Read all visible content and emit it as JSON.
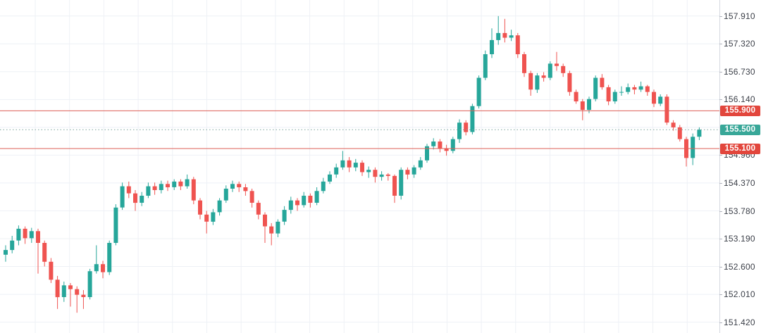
{
  "window": {
    "title": "candlestick-price-chart"
  },
  "chart": {
    "background": "#ffffff",
    "grid_color": "#eef1f6",
    "axis": {
      "border_color": "#d6d9e0",
      "text_color": "#3a3e47",
      "labels": [
        "157.910",
        "157.320",
        "156.730",
        "156.140",
        "154.960",
        "154.370",
        "153.780",
        "153.190",
        "152.600",
        "152.010",
        "151.420"
      ],
      "badges": [
        {
          "label": "155.900",
          "price": 155.9,
          "kind": "level-price",
          "color": "#e2463c"
        },
        {
          "label": "155.500",
          "price": 155.5,
          "kind": "current-price",
          "color": "#38a798"
        },
        {
          "label": "155.100",
          "price": 155.1,
          "kind": "level-price",
          "color": "#e2463c"
        }
      ]
    }
  },
  "chart_data": {
    "type": "candlestick",
    "title": "",
    "xlabel": "",
    "ylabel": "",
    "ylim": [
      151.19,
      158.25
    ],
    "grid": true,
    "legend": "none",
    "price_step": 0.59,
    "grid_prices": [
      157.91,
      157.32,
      156.73,
      156.14,
      155.55,
      154.96,
      154.37,
      153.78,
      153.19,
      152.6,
      152.01,
      151.42
    ],
    "levels": [
      {
        "label": "155.900",
        "price": 155.9,
        "style": "solid",
        "color": "#dd5f57"
      },
      {
        "label": "155.500",
        "price": 155.5,
        "style": "dotted",
        "color": "#7da49e"
      },
      {
        "label": "155.100",
        "price": 155.1,
        "style": "solid",
        "color": "#dd5f57"
      }
    ],
    "colors": {
      "up": "#26a69a",
      "down": "#ef5350"
    },
    "layout": {
      "x_start": 8,
      "x_step": 9.2,
      "body_width": 6,
      "plot_right": 1022,
      "v_grid_step": 48.7,
      "v_grid_start": 50
    },
    "candles": [
      [
        152.85,
        153.05,
        152.7,
        152.95
      ],
      [
        152.95,
        153.25,
        152.88,
        153.15
      ],
      [
        153.15,
        153.47,
        153.05,
        153.4
      ],
      [
        153.4,
        153.45,
        153.08,
        153.2
      ],
      [
        153.2,
        153.42,
        153.1,
        153.35
      ],
      [
        153.35,
        153.4,
        152.45,
        153.1
      ],
      [
        153.1,
        153.15,
        152.6,
        152.7
      ],
      [
        152.7,
        152.78,
        152.25,
        152.32
      ],
      [
        152.32,
        152.4,
        151.7,
        151.95
      ],
      [
        151.95,
        152.28,
        151.85,
        152.2
      ],
      [
        152.2,
        152.25,
        151.75,
        152.12
      ],
      [
        152.12,
        152.18,
        151.62,
        152.0
      ],
      [
        152.0,
        152.1,
        151.7,
        151.95
      ],
      [
        151.95,
        152.55,
        151.9,
        152.5
      ],
      [
        152.5,
        153.05,
        152.45,
        152.65
      ],
      [
        152.65,
        152.72,
        152.35,
        152.48
      ],
      [
        152.48,
        153.15,
        152.42,
        153.1
      ],
      [
        153.1,
        153.92,
        153.05,
        153.85
      ],
      [
        153.85,
        154.38,
        153.8,
        154.3
      ],
      [
        154.3,
        154.4,
        154.05,
        154.15
      ],
      [
        154.15,
        154.22,
        153.78,
        153.95
      ],
      [
        153.95,
        154.18,
        153.88,
        154.1
      ],
      [
        154.1,
        154.38,
        154.05,
        154.3
      ],
      [
        154.3,
        154.38,
        154.12,
        154.22
      ],
      [
        154.22,
        154.42,
        154.15,
        154.35
      ],
      [
        154.35,
        154.42,
        154.2,
        154.28
      ],
      [
        154.28,
        154.45,
        154.22,
        154.4
      ],
      [
        154.4,
        154.45,
        154.22,
        154.3
      ],
      [
        154.3,
        154.55,
        154.25,
        154.45
      ],
      [
        154.45,
        154.5,
        153.92,
        154.0
      ],
      [
        154.0,
        154.05,
        153.6,
        153.7
      ],
      [
        153.7,
        153.78,
        153.3,
        153.55
      ],
      [
        153.55,
        153.82,
        153.48,
        153.75
      ],
      [
        153.75,
        154.05,
        153.68,
        154.0
      ],
      [
        154.0,
        154.32,
        153.95,
        154.25
      ],
      [
        154.25,
        154.42,
        154.18,
        154.35
      ],
      [
        154.35,
        154.4,
        154.18,
        154.28
      ],
      [
        154.28,
        154.35,
        154.1,
        154.2
      ],
      [
        154.2,
        154.25,
        153.85,
        153.95
      ],
      [
        153.95,
        154.0,
        153.6,
        153.7
      ],
      [
        153.7,
        153.75,
        153.1,
        153.45
      ],
      [
        153.45,
        153.52,
        153.05,
        153.3
      ],
      [
        153.3,
        153.6,
        153.22,
        153.55
      ],
      [
        153.55,
        153.88,
        153.48,
        153.8
      ],
      [
        153.8,
        154.08,
        153.72,
        154.0
      ],
      [
        154.0,
        154.05,
        153.78,
        153.9
      ],
      [
        153.9,
        154.18,
        153.85,
        154.1
      ],
      [
        154.1,
        154.15,
        153.85,
        153.95
      ],
      [
        153.95,
        154.28,
        153.9,
        154.2
      ],
      [
        154.2,
        154.48,
        154.15,
        154.4
      ],
      [
        154.4,
        154.62,
        154.35,
        154.55
      ],
      [
        154.55,
        154.78,
        154.48,
        154.7
      ],
      [
        154.7,
        155.05,
        154.65,
        154.85
      ],
      [
        154.85,
        154.92,
        154.6,
        154.7
      ],
      [
        154.7,
        154.88,
        154.62,
        154.8
      ],
      [
        154.8,
        154.85,
        154.52,
        154.6
      ],
      [
        154.6,
        154.72,
        154.48,
        154.65
      ],
      [
        154.65,
        154.7,
        154.38,
        154.5
      ],
      [
        154.5,
        154.62,
        154.42,
        154.55
      ],
      [
        154.55,
        154.58,
        154.42,
        154.52
      ],
      [
        154.52,
        154.55,
        153.95,
        154.1
      ],
      [
        154.1,
        154.7,
        154.02,
        154.65
      ],
      [
        154.65,
        154.7,
        154.45,
        154.55
      ],
      [
        154.55,
        154.75,
        154.48,
        154.7
      ],
      [
        154.7,
        154.92,
        154.65,
        154.85
      ],
      [
        154.85,
        155.2,
        154.8,
        155.15
      ],
      [
        155.15,
        155.32,
        155.08,
        155.25
      ],
      [
        155.25,
        155.3,
        155.02,
        155.1
      ],
      [
        155.1,
        155.18,
        154.95,
        155.05
      ],
      [
        155.05,
        155.35,
        155.0,
        155.3
      ],
      [
        155.3,
        155.72,
        155.22,
        155.65
      ],
      [
        155.65,
        155.7,
        155.38,
        155.45
      ],
      [
        155.45,
        156.05,
        155.4,
        156.0
      ],
      [
        156.0,
        156.65,
        155.95,
        156.6
      ],
      [
        156.6,
        157.18,
        156.55,
        157.1
      ],
      [
        157.1,
        157.65,
        157.02,
        157.4
      ],
      [
        157.4,
        157.91,
        157.3,
        157.55
      ],
      [
        157.55,
        157.85,
        157.35,
        157.45
      ],
      [
        157.45,
        157.62,
        157.38,
        157.5
      ],
      [
        157.5,
        157.55,
        157.02,
        157.1
      ],
      [
        157.1,
        157.15,
        156.62,
        156.7
      ],
      [
        156.7,
        156.75,
        156.22,
        156.35
      ],
      [
        156.35,
        156.7,
        156.28,
        156.65
      ],
      [
        156.65,
        156.72,
        156.52,
        156.6
      ],
      [
        156.6,
        156.95,
        156.55,
        156.9
      ],
      [
        156.9,
        157.15,
        156.75,
        156.85
      ],
      [
        156.85,
        156.9,
        156.62,
        156.7
      ],
      [
        156.7,
        156.75,
        156.22,
        156.3
      ],
      [
        156.3,
        156.35,
        156.05,
        156.1
      ],
      [
        156.1,
        156.15,
        155.7,
        155.92
      ],
      [
        155.92,
        156.2,
        155.85,
        156.15
      ],
      [
        156.15,
        156.65,
        156.1,
        156.6
      ],
      [
        156.6,
        156.68,
        156.35,
        156.4
      ],
      [
        156.4,
        156.45,
        156.02,
        156.1
      ],
      [
        156.1,
        156.35,
        156.05,
        156.3
      ],
      [
        156.3,
        156.42,
        156.22,
        156.3
      ],
      [
        156.3,
        156.48,
        156.25,
        156.4
      ],
      [
        156.4,
        156.45,
        156.25,
        156.35
      ],
      [
        156.35,
        156.52,
        156.3,
        156.42
      ],
      [
        156.42,
        156.45,
        156.22,
        156.3
      ],
      [
        156.3,
        156.35,
        155.98,
        156.05
      ],
      [
        156.05,
        156.25,
        156.0,
        156.2
      ],
      [
        156.2,
        156.25,
        155.6,
        155.65
      ],
      [
        155.65,
        155.7,
        155.48,
        155.55
      ],
      [
        155.55,
        155.6,
        155.25,
        155.3
      ],
      [
        155.3,
        155.35,
        154.72,
        154.9
      ],
      [
        154.9,
        155.42,
        154.75,
        155.35
      ],
      [
        155.35,
        155.55,
        155.28,
        155.5
      ]
    ]
  }
}
